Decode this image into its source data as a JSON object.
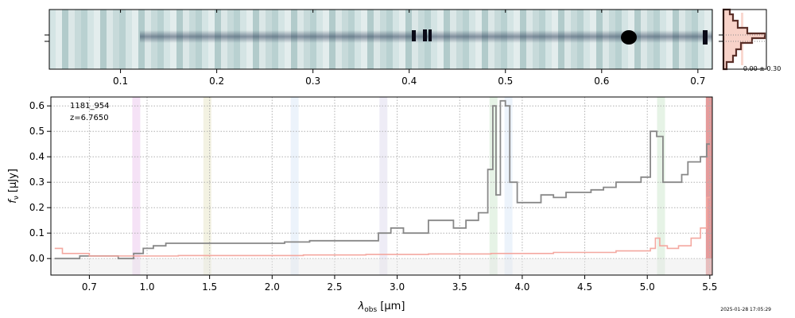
{
  "chart_data": [
    {
      "type": "heatmap",
      "name": "2D spectrum",
      "xlabel": "",
      "top_ticks": [
        "0.1",
        "0.2",
        "0.3",
        "0.4",
        "0.5",
        "0.6",
        "0.7"
      ],
      "top_tick_values": [
        0.1,
        0.2,
        0.3,
        0.4,
        0.5,
        0.6,
        0.7
      ]
    },
    {
      "type": "line",
      "name": "cross-dispersion profile",
      "annotation": "-0.00 ± 0.30"
    },
    {
      "type": "line",
      "title": "",
      "xlabel_main": "λ",
      "xlabel_sub": "obs",
      "xlabel_unit": " [μm]",
      "ylabel_main": "f",
      "ylabel_sub": "ν",
      "ylabel_unit": " [μJy]",
      "object_id": "1181_954",
      "redshift_label": "z=6.7650",
      "timestamp": "2025-01-28 17:05:29",
      "xlim": [
        0.5,
        5.52
      ],
      "ylim": [
        -0.065,
        0.635
      ],
      "x_ticks": [
        0.7,
        1.0,
        1.5,
        2.0,
        2.5,
        3.0,
        3.5,
        4.0,
        4.5,
        5.0,
        5.5
      ],
      "x_tick_labels": [
        "0.7",
        "1.0",
        "1.5",
        "2.0",
        "2.5",
        "3.0",
        "3.5",
        "4.0",
        "4.5",
        "5.0",
        "5.5"
      ],
      "y_ticks": [
        0.0,
        0.1,
        0.2,
        0.3,
        0.4,
        0.5,
        0.6
      ],
      "y_tick_labels": [
        "0.0",
        "0.1",
        "0.2",
        "0.3",
        "0.4",
        "0.5",
        "0.6"
      ],
      "grid": true,
      "emission_bands": [
        {
          "center": 0.944,
          "color": "#d17ad4"
        },
        {
          "center": 1.482,
          "color": "#c8c27a"
        },
        {
          "center": 2.18,
          "color": "#a8c8ee"
        },
        {
          "center": 2.89,
          "color": "#b0a8d8"
        },
        {
          "center": 3.77,
          "color": "#8cc88c"
        },
        {
          "center": 3.89,
          "color": "#a8c8ee"
        },
        {
          "center": 5.11,
          "color": "#8cc88c"
        },
        {
          "center": 5.5,
          "color": "#d04848"
        }
      ],
      "series": [
        {
          "name": "flux",
          "color": "#888888",
          "x": [
            0.52,
            0.6,
            0.7,
            0.8,
            0.9,
            0.96,
            1.0,
            1.1,
            1.2,
            1.4,
            1.6,
            1.8,
            2.0,
            2.2,
            2.4,
            2.6,
            2.8,
            2.9,
            3.0,
            3.1,
            3.2,
            3.3,
            3.4,
            3.5,
            3.6,
            3.7,
            3.75,
            3.78,
            3.8,
            3.85,
            3.88,
            3.92,
            4.0,
            4.1,
            4.2,
            4.3,
            4.4,
            4.5,
            4.6,
            4.7,
            4.8,
            4.9,
            5.0,
            5.05,
            5.1,
            5.15,
            5.2,
            5.25,
            5.3,
            5.35,
            5.4,
            5.45,
            5.5
          ],
          "y": [
            0.0,
            0.0,
            0.01,
            0.01,
            0.0,
            0.02,
            0.04,
            0.05,
            0.06,
            0.06,
            0.06,
            0.06,
            0.06,
            0.065,
            0.07,
            0.07,
            0.07,
            0.1,
            0.12,
            0.1,
            0.1,
            0.15,
            0.15,
            0.12,
            0.15,
            0.18,
            0.35,
            0.6,
            0.25,
            0.62,
            0.6,
            0.3,
            0.22,
            0.22,
            0.25,
            0.24,
            0.26,
            0.26,
            0.27,
            0.28,
            0.3,
            0.3,
            0.32,
            0.5,
            0.48,
            0.3,
            0.3,
            0.3,
            0.33,
            0.38,
            0.38,
            0.4,
            0.45
          ]
        },
        {
          "name": "error",
          "color": "#f4a8a0",
          "x": [
            0.52,
            0.6,
            0.8,
            1.0,
            1.5,
            2.0,
            2.5,
            3.0,
            3.5,
            4.0,
            4.5,
            5.0,
            5.05,
            5.08,
            5.12,
            5.2,
            5.3,
            5.4,
            5.45,
            5.5
          ],
          "y": [
            0.04,
            0.02,
            0.01,
            0.01,
            0.012,
            0.012,
            0.014,
            0.016,
            0.018,
            0.02,
            0.024,
            0.03,
            0.04,
            0.08,
            0.05,
            0.04,
            0.05,
            0.08,
            0.12,
            0.24
          ]
        }
      ]
    }
  ]
}
